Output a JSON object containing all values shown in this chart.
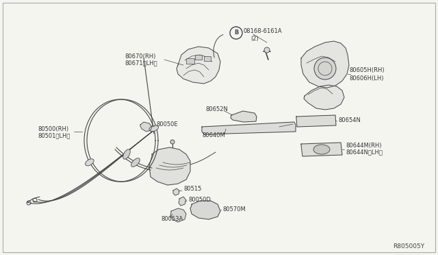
{
  "bg_color": "#f5f5f0",
  "line_color": "#444444",
  "label_color": "#333333",
  "ref_number": "R805005Y",
  "label_fs": 6.0,
  "ref_fs": 6.5,
  "parts_labels": {
    "80670RH": "80670(RH)",
    "80671LH": "80671〈LH〉",
    "bolt": "08168-6161A\n(2)",
    "80500RH": "80500(RH)",
    "80501LH": "80501〈LH〉",
    "80050E": "80050E",
    "80652N": "80652N",
    "80640M": "80640M",
    "80605H": "80605H(RH)\n80606H(LH)",
    "80654N": "80654N",
    "80644M": "80644M(RH)\n80644N(LH)",
    "80515": "80515",
    "80050D": "80050D",
    "80570M": "80570M",
    "80053A": "80053A"
  }
}
